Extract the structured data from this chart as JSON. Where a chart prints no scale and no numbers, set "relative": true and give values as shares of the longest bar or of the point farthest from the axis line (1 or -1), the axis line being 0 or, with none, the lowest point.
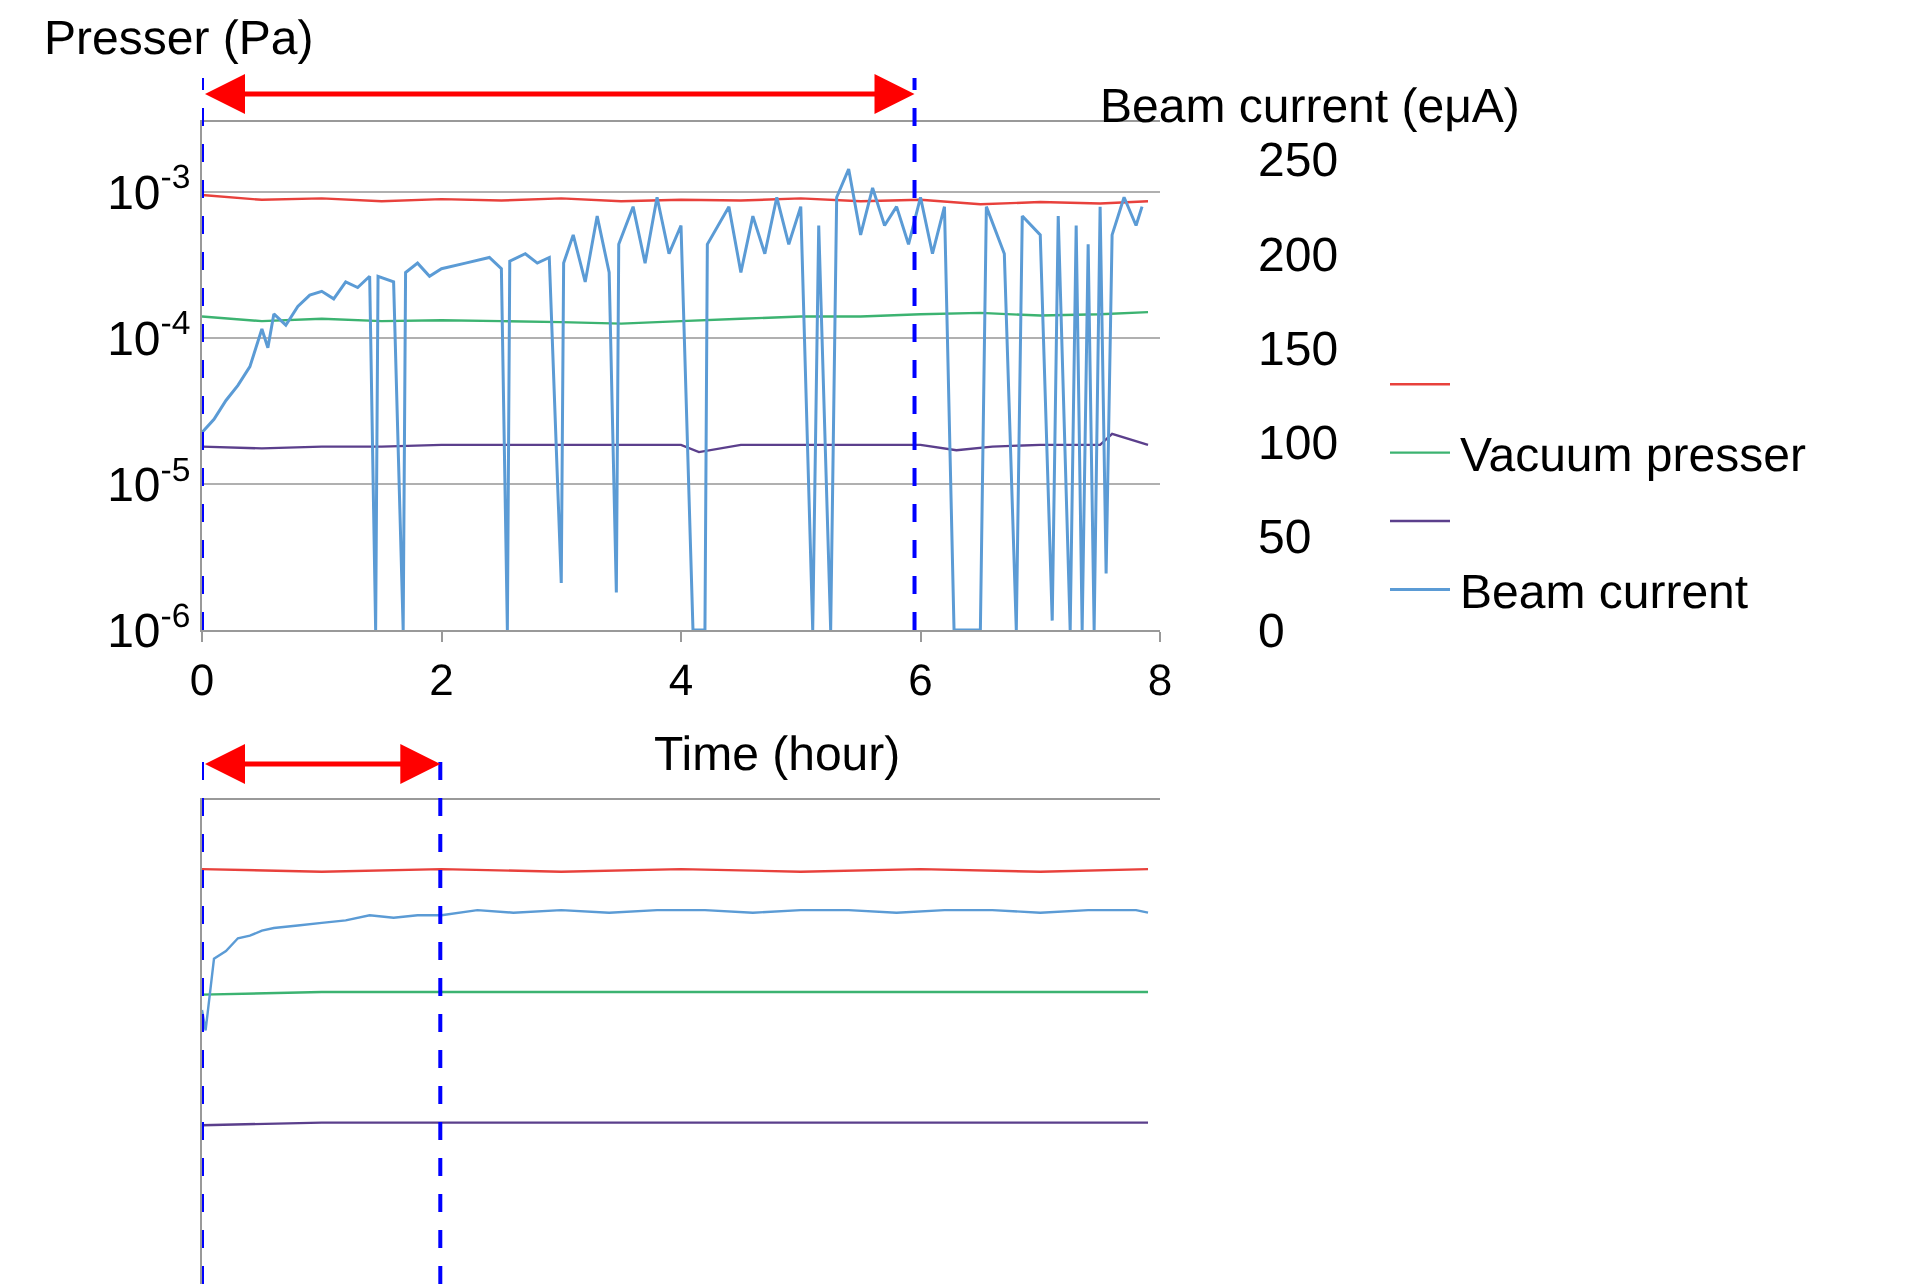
{
  "chart_data": [
    {
      "type": "line",
      "ylabel": "Presser (Pa)",
      "y2label": "Beam current (eμA)",
      "xlabel": "Time (hour)",
      "xlim": [
        0,
        8
      ],
      "xticks": [
        0,
        2,
        4,
        6,
        8
      ],
      "ylim": [
        1e-06,
        0.003
      ],
      "yticks": [
        {
          "value": 1e-06,
          "label": "10$^{-6}$"
        },
        {
          "value": 1e-05,
          "label": "10$^{-5}$"
        },
        {
          "value": 0.0001,
          "label": "10$^{-4}$"
        },
        {
          "value": 0.001,
          "label": "10$^{-3}$"
        }
      ],
      "y2lim": [
        0,
        270
      ],
      "y2ticks": [
        0,
        50,
        100,
        150,
        200,
        250
      ],
      "log": "y",
      "grid": "y",
      "legend": "right",
      "ref_lines": [
        {
          "axis": "x",
          "value": 0,
          "color": "#0000ff",
          "line_style": "dashed"
        },
        {
          "axis": "x",
          "value": 5.95,
          "color": "#0000ff",
          "line_style": "dashed"
        }
      ],
      "series": [
        {
          "name": null,
          "color": "#e8413c",
          "x": [
            0,
            0.5,
            1,
            1.5,
            2,
            2.5,
            3,
            3.5,
            4,
            4.5,
            5,
            5.5,
            6,
            6.5,
            7,
            7.5,
            7.9
          ],
          "values": [
            0.00095,
            0.00088,
            0.0009,
            0.00086,
            0.00089,
            0.00087,
            0.0009,
            0.00086,
            0.00088,
            0.00087,
            0.0009,
            0.00086,
            0.00088,
            0.00082,
            0.00085,
            0.00083,
            0.00086
          ]
        },
        {
          "name": "Vacuum presser",
          "color": "#3cb371",
          "x": [
            0,
            0.5,
            1,
            1.5,
            2,
            2.5,
            3,
            3.5,
            4,
            4.5,
            5,
            5.5,
            6,
            6.5,
            7,
            7.5,
            7.9
          ],
          "values": [
            0.00014,
            0.00013,
            0.000135,
            0.00013,
            0.000132,
            0.00013,
            0.000128,
            0.000125,
            0.00013,
            0.000135,
            0.00014,
            0.00014,
            0.000145,
            0.000148,
            0.000142,
            0.000145,
            0.00015
          ]
        },
        {
          "name": null,
          "color": "#5b3f8c",
          "x": [
            0,
            0.5,
            1,
            1.5,
            2,
            2.5,
            3,
            3.5,
            4,
            4.15,
            4.5,
            5,
            5.5,
            6,
            6.3,
            6.6,
            7,
            7.5,
            7.6,
            7.9
          ],
          "values": [
            1.8e-05,
            1.75e-05,
            1.8e-05,
            1.8e-05,
            1.85e-05,
            1.85e-05,
            1.85e-05,
            1.85e-05,
            1.85e-05,
            1.65e-05,
            1.85e-05,
            1.85e-05,
            1.85e-05,
            1.85e-05,
            1.7e-05,
            1.8e-05,
            1.85e-05,
            1.85e-05,
            2.2e-05,
            1.85e-05
          ]
        },
        {
          "name": "Beam current",
          "color": "#5b9bd5",
          "axis": "y2",
          "x": [
            0,
            0.1,
            0.2,
            0.3,
            0.4,
            0.5,
            0.55,
            0.6,
            0.7,
            0.8,
            0.9,
            1.0,
            1.1,
            1.2,
            1.3,
            1.4,
            1.45,
            1.47,
            1.6,
            1.68,
            1.7,
            1.8,
            1.9,
            2.0,
            2.2,
            2.4,
            2.5,
            2.55,
            2.57,
            2.7,
            2.8,
            2.9,
            3.0,
            3.02,
            3.1,
            3.2,
            3.3,
            3.4,
            3.46,
            3.48,
            3.6,
            3.7,
            3.8,
            3.9,
            4.0,
            4.1,
            4.2,
            4.22,
            4.4,
            4.5,
            4.6,
            4.7,
            4.8,
            4.9,
            5.0,
            5.1,
            5.15,
            5.25,
            5.3,
            5.4,
            5.5,
            5.6,
            5.7,
            5.8,
            5.9,
            6.0,
            6.1,
            6.2,
            6.28,
            6.5,
            6.55,
            6.7,
            6.8,
            6.85,
            7.0,
            7.1,
            7.15,
            7.25,
            7.3,
            7.35,
            7.4,
            7.45,
            7.5,
            7.55,
            7.6,
            7.7,
            7.8,
            7.85
          ],
          "values": [
            105,
            112,
            122,
            130,
            140,
            160,
            150,
            168,
            162,
            172,
            178,
            180,
            176,
            185,
            182,
            188,
            0,
            188,
            185,
            0,
            190,
            195,
            188,
            192,
            195,
            198,
            192,
            0,
            196,
            200,
            195,
            198,
            25,
            195,
            210,
            185,
            220,
            190,
            20,
            205,
            225,
            195,
            230,
            200,
            215,
            0,
            0,
            205,
            225,
            190,
            220,
            200,
            230,
            205,
            225,
            0,
            215,
            0,
            230,
            245,
            210,
            235,
            215,
            225,
            205,
            230,
            200,
            225,
            0,
            0,
            225,
            200,
            0,
            220,
            210,
            5,
            220,
            0,
            215,
            0,
            205,
            0,
            225,
            30,
            210,
            230,
            215,
            225
          ]
        }
      ]
    },
    {
      "type": "line",
      "relative": true,
      "xlim": [
        0,
        8
      ],
      "ref_lines": [
        {
          "axis": "x",
          "value": 0,
          "color": "#0000ff",
          "line_style": "dashed"
        },
        {
          "axis": "x",
          "value": 1.99,
          "color": "#0000ff",
          "line_style": "dashed"
        }
      ],
      "series": [
        {
          "color": "#e8413c",
          "x": [
            0,
            1,
            2,
            3,
            4,
            5,
            6,
            7,
            7.9
          ],
          "values": [
            1.0,
            0.99,
            1.0,
            0.99,
            1.0,
            0.99,
            1.0,
            0.99,
            1.0
          ]
        },
        {
          "color": "#3cb371",
          "x": [
            0,
            1,
            2,
            3,
            4,
            5,
            6,
            7,
            7.9
          ],
          "values": [
            0.51,
            0.52,
            0.52,
            0.52,
            0.52,
            0.52,
            0.52,
            0.52,
            0.52
          ]
        },
        {
          "color": "#5b3f8c",
          "x": [
            0,
            1,
            2,
            3,
            4,
            5,
            6,
            7,
            7.9
          ],
          "values": [
            0,
            0.01,
            0.01,
            0.01,
            0.01,
            0.01,
            0.01,
            0.01,
            0.01
          ]
        },
        {
          "color": "#5b9bd5",
          "x": [
            0,
            0.03,
            0.1,
            0.2,
            0.3,
            0.4,
            0.5,
            0.6,
            0.8,
            1.0,
            1.2,
            1.4,
            1.6,
            1.8,
            2.0,
            2.3,
            2.6,
            3.0,
            3.4,
            3.8,
            4.2,
            4.6,
            5.0,
            5.4,
            5.8,
            6.2,
            6.6,
            7.0,
            7.4,
            7.8,
            7.9
          ],
          "values": [
            0.45,
            0.37,
            0.65,
            0.68,
            0.73,
            0.74,
            0.76,
            0.77,
            0.78,
            0.79,
            0.8,
            0.82,
            0.81,
            0.82,
            0.82,
            0.84,
            0.83,
            0.84,
            0.83,
            0.84,
            0.84,
            0.83,
            0.84,
            0.84,
            0.83,
            0.84,
            0.84,
            0.83,
            0.84,
            0.84,
            0.83
          ]
        }
      ]
    }
  ]
}
